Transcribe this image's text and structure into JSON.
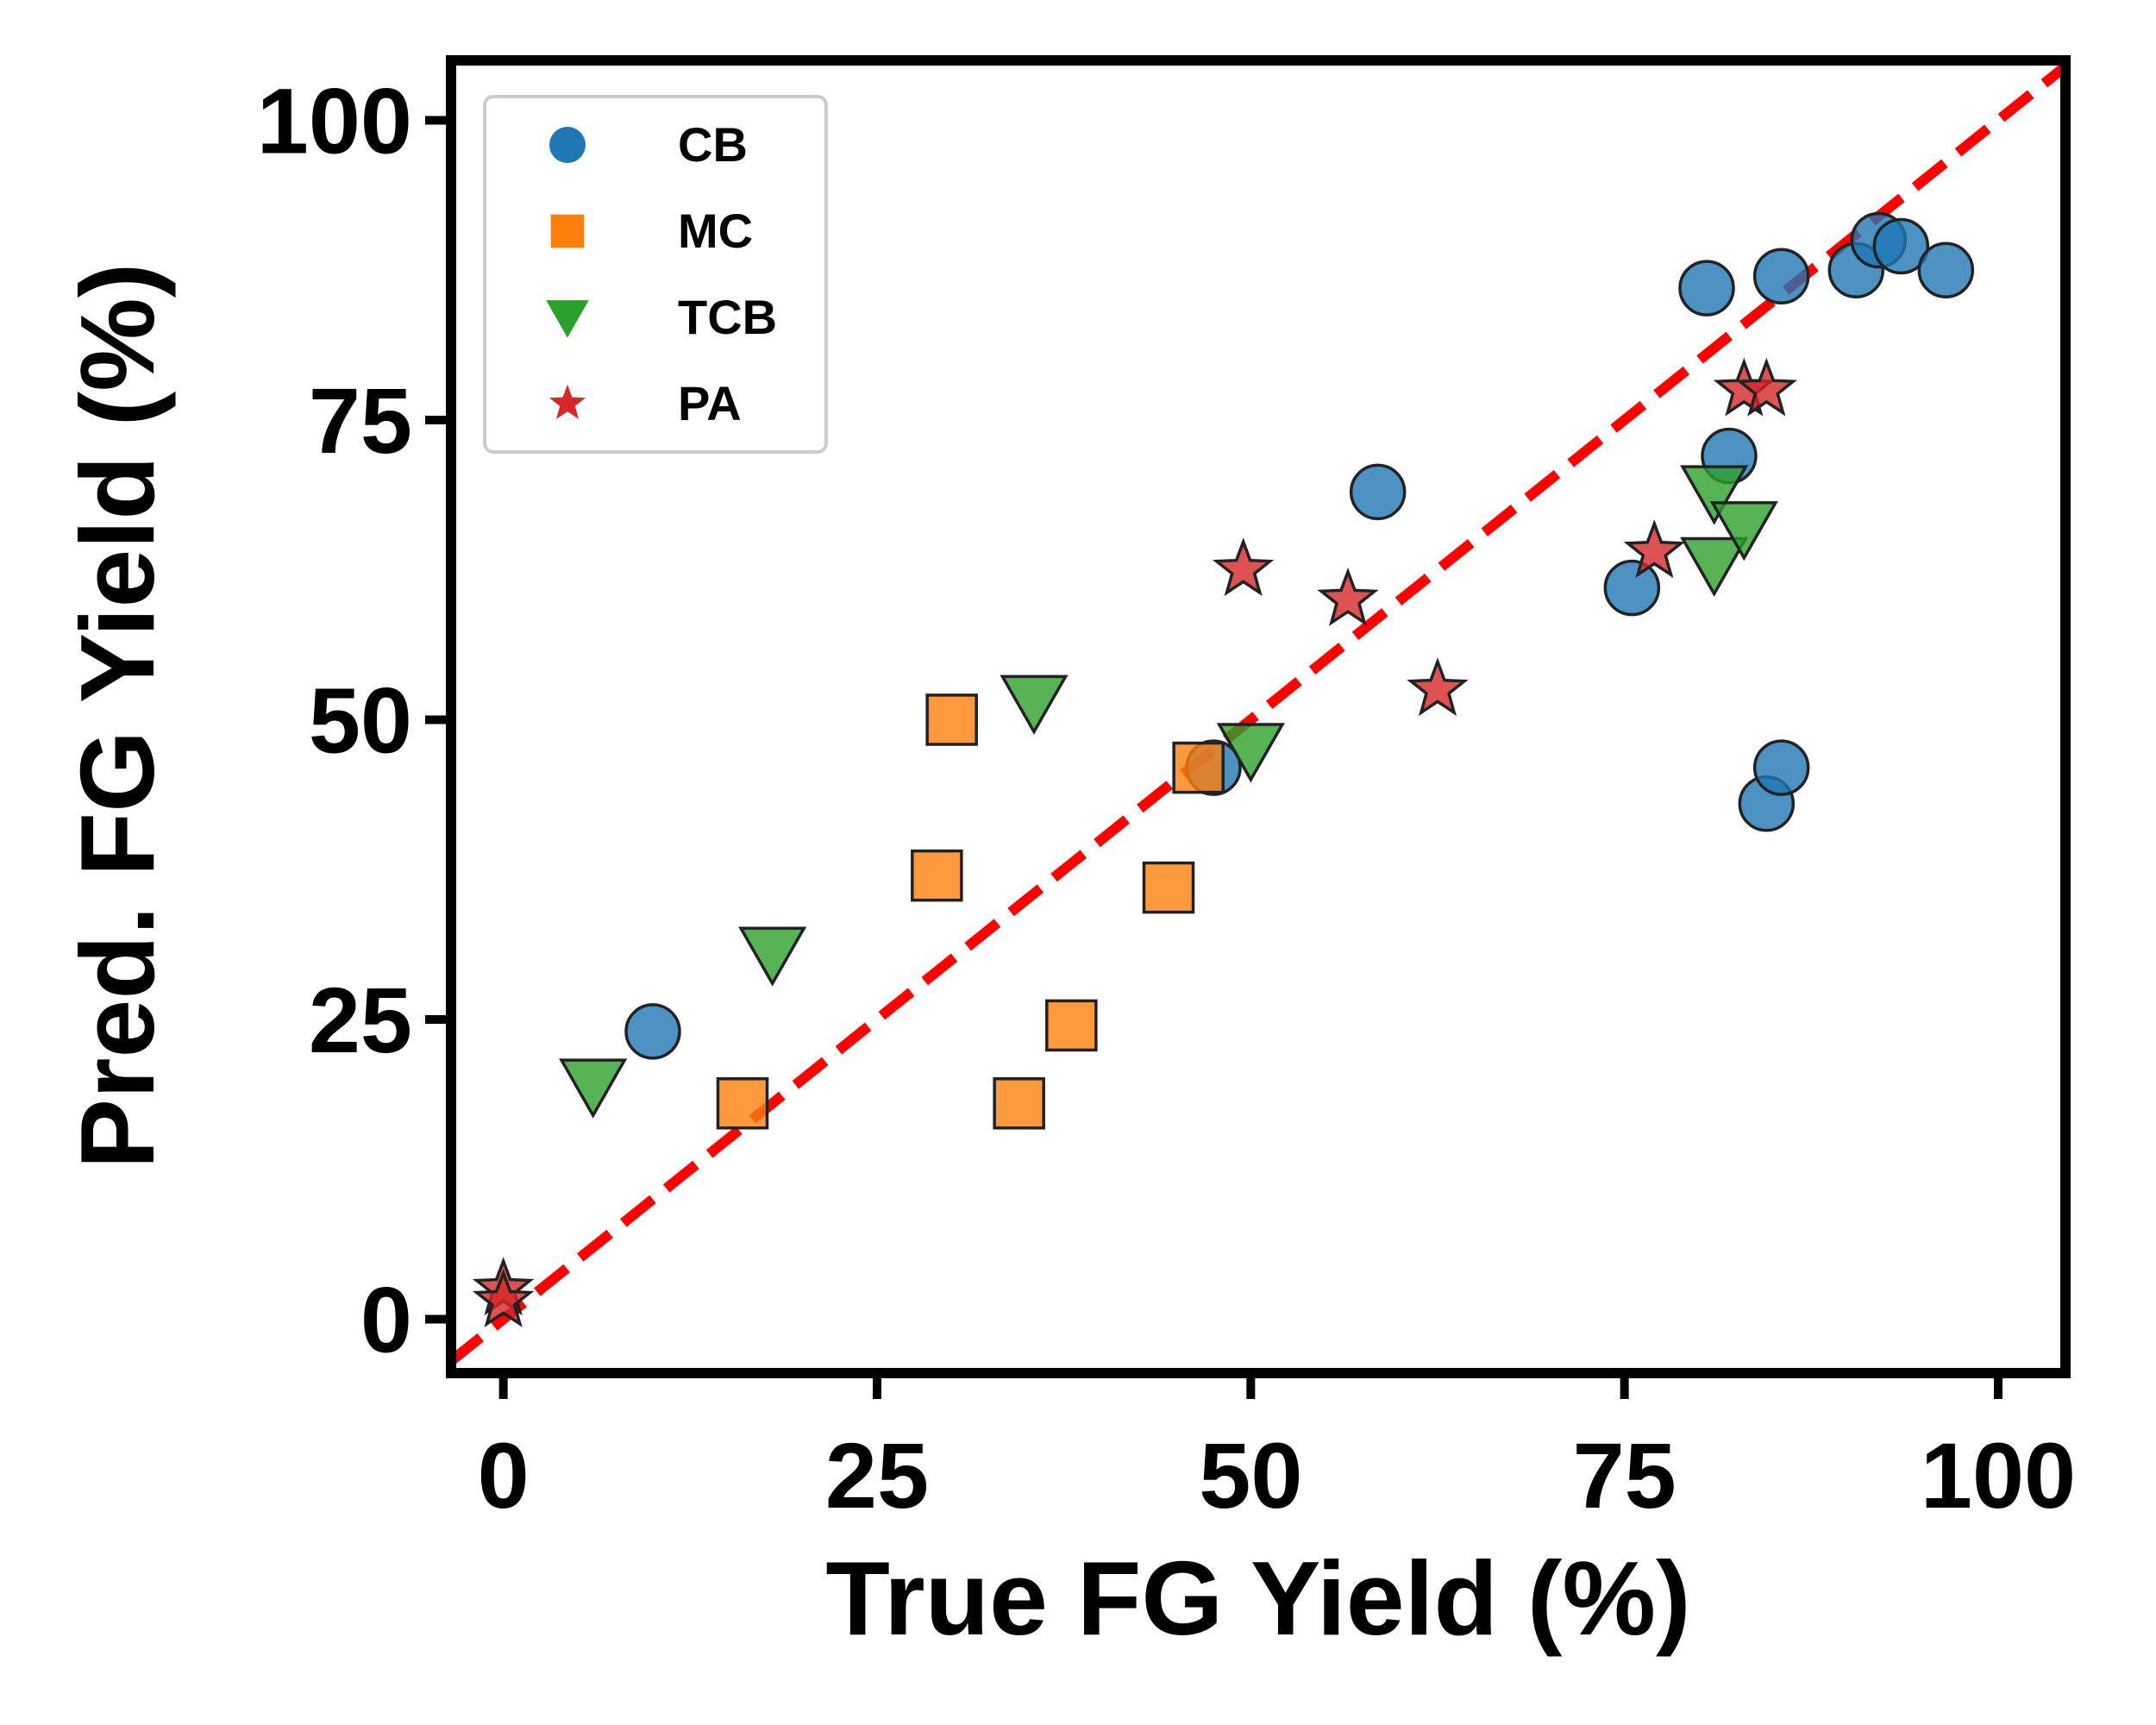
{
  "chart_data": {
    "type": "scatter",
    "xlabel": "True FG Yield (%)",
    "ylabel": "Pred. FG Yield (%)",
    "xlim": [
      -3.5,
      104.5
    ],
    "ylim": [
      -4.5,
      105
    ],
    "xticks": [
      0,
      25,
      50,
      75,
      100
    ],
    "yticks": [
      0,
      25,
      50,
      75,
      100
    ],
    "x_tick_labels": [
      "0",
      "25",
      "50",
      "75",
      "100"
    ],
    "y_tick_labels": [
      "0",
      "25",
      "50",
      "75",
      "100"
    ],
    "grid": false,
    "legend_position": "top-left",
    "reference_line": {
      "style": "dashed",
      "color": "#ff0000",
      "from": [
        -3.5,
        -3.5
      ],
      "to": [
        104.5,
        104.5
      ]
    },
    "series": [
      {
        "name": "CB",
        "marker": "circle",
        "color": "#1f77b4",
        "points": [
          [
            10,
            24
          ],
          [
            47.5,
            46
          ],
          [
            58.5,
            69
          ],
          [
            75.5,
            61
          ],
          [
            80.5,
            86
          ],
          [
            82,
            72
          ],
          [
            84.5,
            43
          ],
          [
            85.5,
            46
          ],
          [
            85.5,
            87
          ],
          [
            90.5,
            87.5
          ],
          [
            92,
            90
          ],
          [
            93.5,
            89.5
          ],
          [
            96.5,
            87.5
          ]
        ]
      },
      {
        "name": "MC",
        "marker": "square",
        "color": "#ff7f0e",
        "points": [
          [
            16,
            18
          ],
          [
            29,
            37
          ],
          [
            30,
            50
          ],
          [
            34.5,
            18
          ],
          [
            38,
            24.5
          ],
          [
            44.5,
            36
          ],
          [
            46.5,
            46
          ]
        ]
      },
      {
        "name": "TCB",
        "marker": "triangle-down",
        "color": "#2ca02c",
        "points": [
          [
            6,
            19.5
          ],
          [
            18,
            30.5
          ],
          [
            35.5,
            51.5
          ],
          [
            50,
            47.5
          ],
          [
            81,
            63
          ],
          [
            81,
            69
          ],
          [
            83,
            66
          ]
        ]
      },
      {
        "name": "PA",
        "marker": "star",
        "color": "#d62728",
        "points": [
          [
            0,
            2.5
          ],
          [
            0,
            1.5
          ],
          [
            49.5,
            62.5
          ],
          [
            56.5,
            60
          ],
          [
            62.5,
            52.5
          ],
          [
            77,
            64
          ],
          [
            83,
            77.5
          ],
          [
            84.5,
            77.5
          ]
        ]
      }
    ]
  }
}
